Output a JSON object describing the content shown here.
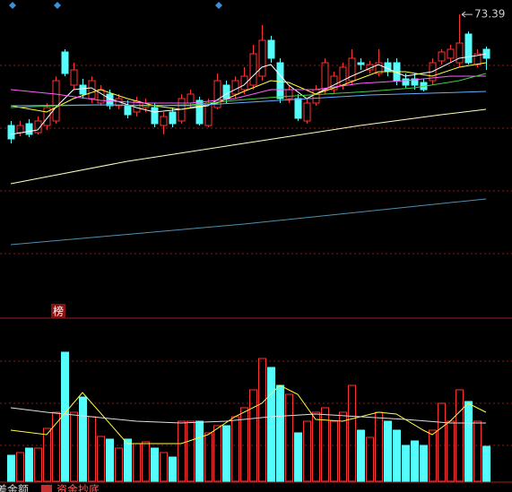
{
  "chart_data": {
    "type": "candlestick",
    "up_color": "#ff3232",
    "down_color": "#54fcfc",
    "ylim": [
      40,
      75
    ],
    "open": [
      61.0,
      60.2,
      61.2,
      60.2,
      61.0,
      61.5,
      69.2,
      65.5,
      65.5,
      64.0,
      63.5,
      64.5,
      63.2,
      63.2,
      62.5,
      63.0,
      63.0,
      61.0,
      62.5,
      61.5,
      63.5,
      63.8,
      61.0,
      63.0,
      65.5,
      64.5,
      65.0,
      65.5,
      66.5,
      70.5,
      68.0,
      64.0,
      64.0,
      61.5,
      63.5,
      65.0,
      65.0,
      65.5,
      66.0,
      68.0,
      67.2,
      66.8,
      68.0,
      68.0,
      66.2,
      66.2,
      65.8,
      66.0,
      68.2,
      68.5,
      68.0,
      71.2,
      67.8,
      69.5
    ],
    "high": [
      61.5,
      61.5,
      61.7,
      62.0,
      63.5,
      66.5,
      69.5,
      68.0,
      66.2,
      66.5,
      65.5,
      65.0,
      64.5,
      63.8,
      64.2,
      64.0,
      63.5,
      62.5,
      63.0,
      64.5,
      65.0,
      64.2,
      64.0,
      66.8,
      66.0,
      66.5,
      67.5,
      70.0,
      72.2,
      71.0,
      68.5,
      65.5,
      64.5,
      64.0,
      65.5,
      68.5,
      67.0,
      68.0,
      69.5,
      68.5,
      68.2,
      69.5,
      68.5,
      68.5,
      66.8,
      66.8,
      66.2,
      68.5,
      69.5,
      70.0,
      73.39,
      71.5,
      69.5,
      69.8
    ],
    "low": [
      59.0,
      59.8,
      59.7,
      60.0,
      60.5,
      61.2,
      66.5,
      65.0,
      64.0,
      63.5,
      63.2,
      62.8,
      62.8,
      61.8,
      62.0,
      62.5,
      60.8,
      60.0,
      60.8,
      61.2,
      63.0,
      61.0,
      60.8,
      62.8,
      63.5,
      64.0,
      64.5,
      65.0,
      66.0,
      68.0,
      63.5,
      63.5,
      61.5,
      61.2,
      63.2,
      64.5,
      64.5,
      65.0,
      65.5,
      67.2,
      66.8,
      66.5,
      66.5,
      65.5,
      65.2,
      65.0,
      64.8,
      65.5,
      67.8,
      68.0,
      67.5,
      67.8,
      67.5,
      67.2
    ],
    "close": [
      59.5,
      61.0,
      60.0,
      61.5,
      63.0,
      66.0,
      66.8,
      67.2,
      64.5,
      66.0,
      65.0,
      63.2,
      64.0,
      62.2,
      63.7,
      63.5,
      61.2,
      62.0,
      61.2,
      64.0,
      64.5,
      61.2,
      63.5,
      66.0,
      64.0,
      66.0,
      66.5,
      69.0,
      70.5,
      68.5,
      64.0,
      65.0,
      61.8,
      63.5,
      65.0,
      68.0,
      66.5,
      67.5,
      68.5,
      67.8,
      67.8,
      68.0,
      67.0,
      66.0,
      65.5,
      65.5,
      65.0,
      68.0,
      69.2,
      69.5,
      70.2,
      68.0,
      69.0,
      68.5
    ],
    "high_mark": 73.39,
    "ma_lines": [
      {
        "color": "#ffffff",
        "x": [
          0,
          3,
          5,
          7,
          9,
          11,
          14,
          16,
          19,
          22,
          24,
          26,
          28,
          29,
          31,
          33,
          35,
          38,
          41,
          44,
          47,
          50,
          52,
          53
        ],
        "values": [
          60.0,
          60.5,
          63.0,
          65.0,
          65.2,
          64.0,
          63.0,
          62.5,
          62.8,
          63.2,
          64.5,
          65.5,
          67.5,
          67.8,
          65.5,
          64.0,
          65.0,
          66.5,
          67.8,
          66.5,
          67.0,
          68.5,
          68.8,
          69.0
        ]
      },
      {
        "color": "#ffff40",
        "x": [
          0,
          4,
          7,
          10,
          13,
          16,
          19,
          23,
          26,
          29,
          31,
          34,
          37,
          41,
          44,
          47,
          50,
          53
        ],
        "values": [
          63.2,
          62.5,
          64.0,
          65.0,
          64.0,
          63.2,
          62.8,
          63.5,
          64.8,
          66.0,
          65.8,
          64.5,
          65.5,
          67.0,
          67.0,
          66.5,
          67.5,
          68.0
        ]
      },
      {
        "color": "#ff60ff",
        "x": [
          0,
          5,
          10,
          15,
          20,
          25,
          29,
          34,
          39,
          44,
          49,
          53
        ],
        "values": [
          65.0,
          64.5,
          63.8,
          63.5,
          63.5,
          64.0,
          65.0,
          65.0,
          65.7,
          66.0,
          66.5,
          66.5
        ]
      },
      {
        "color": "#40d040",
        "x": [
          0,
          5,
          10,
          15,
          20,
          25,
          30,
          35,
          40,
          45,
          50,
          53
        ],
        "values": [
          63.0,
          63.2,
          63.3,
          63.2,
          63.3,
          63.8,
          64.2,
          64.5,
          64.8,
          65.2,
          66.0,
          66.8
        ]
      },
      {
        "color": "#60b0ff",
        "x": [
          0,
          10,
          20,
          30,
          40,
          50,
          53
        ],
        "values": [
          63.2,
          63.3,
          63.2,
          63.8,
          64.4,
          64.7,
          64.8
        ]
      },
      {
        "color": "#ffffc0",
        "x": [
          0,
          13,
          26,
          39,
          48,
          53
        ],
        "values": [
          54.5,
          57.0,
          59.0,
          61.0,
          62.2,
          62.8
        ]
      },
      {
        "color": "#4f8fb0",
        "x": [
          0,
          26,
          53
        ],
        "values": [
          47.7,
          50.0,
          52.8
        ]
      }
    ],
    "volume": {
      "ylim": [
        0,
        150
      ],
      "values": [
        29,
        32,
        37,
        37,
        59,
        77,
        144,
        77,
        94,
        72,
        50,
        47,
        37,
        47,
        42,
        44,
        37,
        32,
        27,
        67,
        67,
        67,
        54,
        62,
        62,
        72,
        82,
        102,
        137,
        127,
        107,
        97,
        54,
        67,
        77,
        82,
        67,
        77,
        107,
        57,
        49,
        77,
        67,
        57,
        40,
        45,
        40,
        57,
        87,
        67,
        102,
        89,
        67,
        39
      ],
      "ma_lines": [
        {
          "color": "#ffff40",
          "x": [
            0,
            4,
            8,
            13,
            19,
            22,
            25,
            28,
            30,
            32,
            34,
            37,
            41,
            43,
            46,
            47,
            49,
            51,
            53
          ],
          "values": [
            57,
            52,
            99,
            42,
            42,
            52,
            72,
            87,
            107,
            97,
            69,
            67,
            77,
            75,
            57,
            52,
            67,
            87,
            77
          ]
        },
        {
          "color": "#e0e0e0",
          "x": [
            0,
            4,
            9,
            14,
            19,
            24,
            29,
            34,
            39,
            44,
            49,
            53
          ],
          "values": [
            82,
            77,
            72,
            67,
            65,
            67,
            72,
            75,
            72,
            69,
            65,
            65
          ]
        }
      ]
    },
    "badge": "榜",
    "legend": [
      "差金额",
      "资金抄底"
    ]
  }
}
